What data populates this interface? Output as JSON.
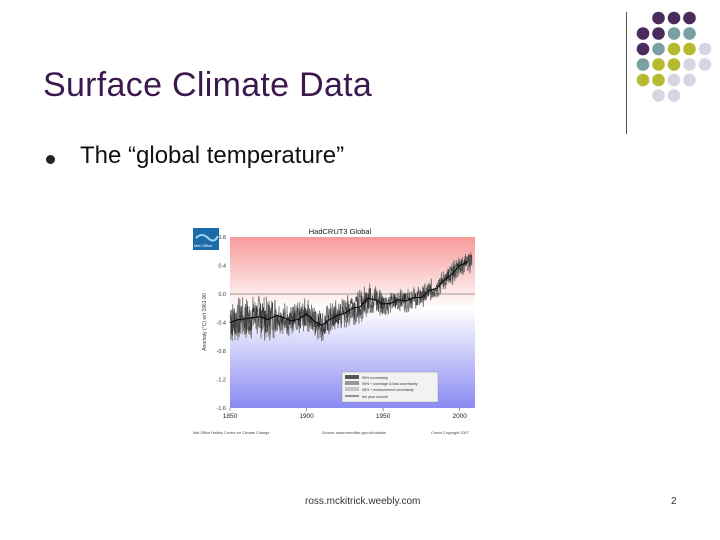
{
  "slide": {
    "title": "Surface Climate Data",
    "bullet": "The “global temperature”",
    "footer": "ross.mckitrick.weebly.com",
    "page_number": "2"
  },
  "decor": {
    "dot_colors": [
      "#4b2a5e",
      "#7a9fa4",
      "#b7b92e",
      "#d6d6e2"
    ],
    "dot_grid": [
      [
        null,
        0,
        0,
        0,
        null
      ],
      [
        0,
        0,
        1,
        1,
        null
      ],
      [
        0,
        1,
        2,
        2,
        3
      ],
      [
        1,
        2,
        2,
        3,
        3
      ],
      [
        2,
        2,
        3,
        3,
        null
      ],
      [
        null,
        3,
        3,
        null,
        null
      ]
    ]
  },
  "chart_data": {
    "type": "line",
    "title": "HadCRUT3 Global",
    "logo_text": "Met Office",
    "ylabel": "Anomaly (°C) wrt 1961-90",
    "xlim": [
      1850,
      2010
    ],
    "ylim": [
      -1.6,
      0.8
    ],
    "y_ticks": [
      0.8,
      0.4,
      0.0,
      -0.4,
      -0.8,
      -1.2,
      -1.6
    ],
    "y_tick_labels": [
      "0.8",
      "0.4",
      "0.0",
      "-0.4",
      "-0.8",
      "-1.2",
      "-1.6"
    ],
    "x_ticks": [
      1850,
      1900,
      1950,
      2000
    ],
    "x_tick_labels": [
      "1850",
      "1900",
      "1950",
      "2000"
    ],
    "legend": {
      "placement": "bottom-right",
      "entries": [
        "95% uncertainty",
        "95% + coverage & bias uncertainty",
        "95% + measurement uncertainty",
        "ten year smooth"
      ]
    },
    "credits": {
      "left": "Met Office Hadley Centre for Climate Change",
      "center": "Source: www.metoffice.gov.uk/hadobs",
      "right": "Crown Copyright 2007"
    },
    "background_colors": {
      "top": "#f79a9a",
      "mid": "#ffffff",
      "bottom": "#8a8af2"
    },
    "smooth_series": {
      "name": "ten year smooth",
      "x": [
        1850,
        1855,
        1860,
        1865,
        1870,
        1875,
        1880,
        1885,
        1890,
        1895,
        1900,
        1905,
        1910,
        1915,
        1920,
        1925,
        1930,
        1935,
        1940,
        1945,
        1950,
        1955,
        1960,
        1965,
        1970,
        1975,
        1980,
        1985,
        1990,
        1995,
        2000,
        2005
      ],
      "y": [
        -0.4,
        -0.36,
        -0.35,
        -0.33,
        -0.32,
        -0.36,
        -0.3,
        -0.33,
        -0.38,
        -0.35,
        -0.28,
        -0.38,
        -0.44,
        -0.36,
        -0.3,
        -0.27,
        -0.2,
        -0.18,
        -0.06,
        -0.08,
        -0.14,
        -0.13,
        -0.08,
        -0.1,
        -0.05,
        -0.05,
        0.05,
        0.08,
        0.2,
        0.28,
        0.4,
        0.45
      ]
    }
  }
}
